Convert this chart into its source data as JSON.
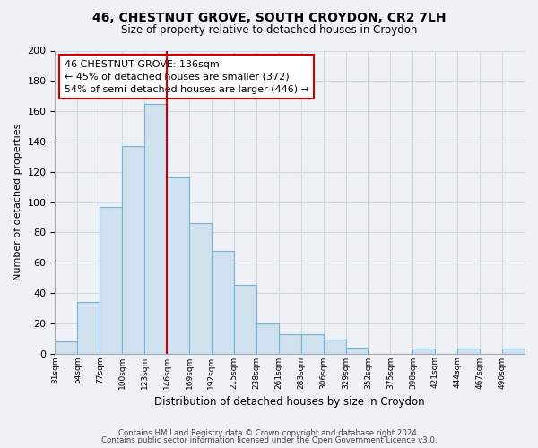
{
  "title1": "46, CHESTNUT GROVE, SOUTH CROYDON, CR2 7LH",
  "title2": "Size of property relative to detached houses in Croydon",
  "xlabel": "Distribution of detached houses by size in Croydon",
  "ylabel": "Number of detached properties",
  "bin_labels": [
    "31sqm",
    "54sqm",
    "77sqm",
    "100sqm",
    "123sqm",
    "146sqm",
    "169sqm",
    "192sqm",
    "215sqm",
    "238sqm",
    "261sqm",
    "283sqm",
    "306sqm",
    "329sqm",
    "352sqm",
    "375sqm",
    "398sqm",
    "421sqm",
    "444sqm",
    "467sqm",
    "490sqm"
  ],
  "bar_values": [
    8,
    34,
    97,
    137,
    165,
    116,
    86,
    68,
    45,
    20,
    13,
    13,
    9,
    4,
    0,
    0,
    3,
    0,
    3,
    0,
    3
  ],
  "bar_color": "#cfe0ee",
  "bar_edge_color": "#7ab4d4",
  "annotation_title": "46 CHESTNUT GROVE: 136sqm",
  "annotation_line1": "← 45% of detached houses are smaller (372)",
  "annotation_line2": "54% of semi-detached houses are larger (446) →",
  "vline_color": "#cc0000",
  "vline_index": 5,
  "ylim": [
    0,
    200
  ],
  "yticks": [
    0,
    20,
    40,
    60,
    80,
    100,
    120,
    140,
    160,
    180,
    200
  ],
  "footer1": "Contains HM Land Registry data © Crown copyright and database right 2024.",
  "footer2": "Contains public sector information licensed under the Open Government Licence v3.0.",
  "background_color": "#eef2f7",
  "grid_color": "#d0d8e4",
  "plot_bg_color": "#eef2f7"
}
